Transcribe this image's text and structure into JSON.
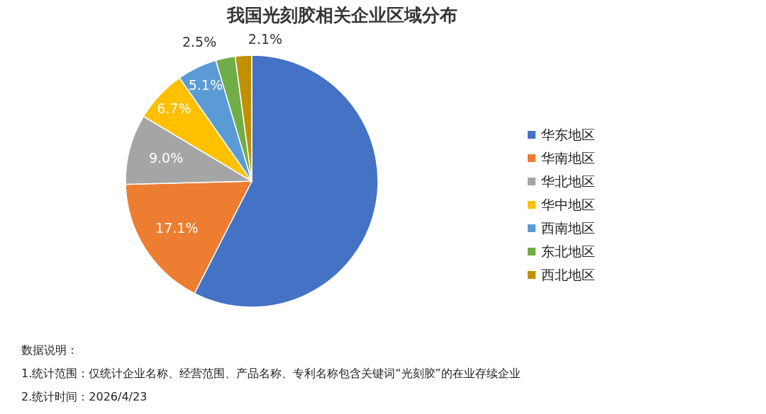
{
  "chart_data": {
    "type": "pie",
    "title": "我国光刻胶相关企业区域分布",
    "categories": [
      "华东地区",
      "华南地区",
      "华北地区",
      "华中地区",
      "西南地区",
      "东北地区",
      "西北地区"
    ],
    "values": [
      57.5,
      17.1,
      9.0,
      6.7,
      5.1,
      2.5,
      2.1
    ],
    "value_labels": [
      null,
      "17.1%",
      "9.0%",
      "6.7%",
      "5.1%",
      "2.5%",
      "2.1%"
    ],
    "colors": [
      "#4472c4",
      "#ed7d31",
      "#a5a5a5",
      "#ffc000",
      "#5b9bd5",
      "#70ad47",
      "#bf9000"
    ],
    "legend": "right",
    "annotations": [
      "数据说明：",
      "1.统计范围：仅统计企业名称、经营范围、产品名称、专利名称包含关键词“光刻胶”的在业存续企业",
      "2.统计时间：2026/4/23"
    ]
  }
}
